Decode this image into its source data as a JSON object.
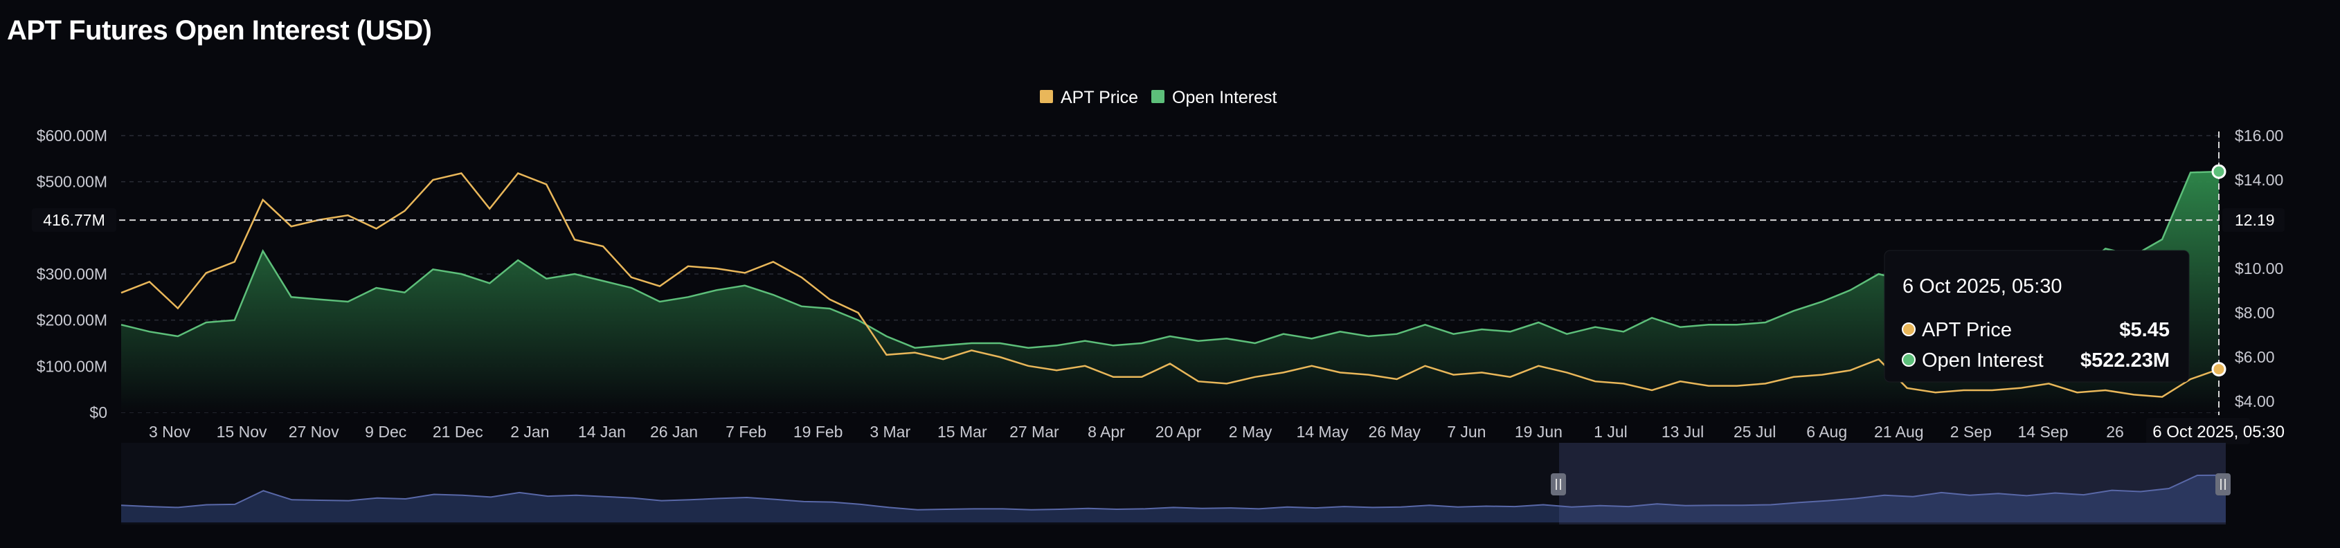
{
  "title": "APT Futures Open Interest (USD)",
  "legend": [
    {
      "label": "APT Price",
      "color": "#e9b75a"
    },
    {
      "label": "Open Interest",
      "color": "#5dbf7a"
    }
  ],
  "colors": {
    "price_line": "#e9b75a",
    "oi_line": "#5dbf7a",
    "oi_fill_top": "#2f8a4c",
    "background": "#07080d",
    "navigator_fill": "#1e2a4a",
    "navigator_line": "#5968a8"
  },
  "crosshair": {
    "left_label": "416.77M",
    "right_label": "12.19"
  },
  "tooltip": {
    "date": "6 Oct 2025, 05:30",
    "rows": [
      {
        "label": "APT Price",
        "value": "$5.45",
        "color": "#e9b75a"
      },
      {
        "label": "Open Interest",
        "value": "$522.23M",
        "color": "#5dbf7a"
      }
    ]
  },
  "x_highlight_label": "6 Oct 2025, 05:30",
  "chart_data": {
    "type": "line",
    "title": "APT Futures Open Interest (USD)",
    "x_ticks": [
      "3 Nov",
      "15 Nov",
      "27 Nov",
      "9 Dec",
      "21 Dec",
      "2 Jan",
      "14 Jan",
      "26 Jan",
      "7 Feb",
      "19 Feb",
      "3 Mar",
      "15 Mar",
      "27 Mar",
      "8 Apr",
      "20 Apr",
      "2 May",
      "14 May",
      "26 May",
      "7 Jun",
      "19 Jun",
      "1 Jul",
      "13 Jul",
      "25 Jul",
      "6 Aug",
      "21 Aug",
      "2 Sep",
      "14 Sep",
      "26"
    ],
    "y_left_ticks": [
      "$600.00M",
      "$500.00M",
      "$300.00M",
      "$200.00M",
      "$100.00M",
      "$0"
    ],
    "y_left_range": [
      0,
      600
    ],
    "y_right_ticks": [
      "$16.00",
      "$14.00",
      "$10.00",
      "$8.00",
      "$6.00",
      "$4.00"
    ],
    "y_right_range": [
      3.5,
      16
    ],
    "series": [
      {
        "name": "Open Interest",
        "axis": "left",
        "unit": "M USD",
        "values": [
          190,
          175,
          165,
          195,
          200,
          350,
          250,
          245,
          240,
          270,
          260,
          310,
          300,
          280,
          330,
          290,
          300,
          285,
          270,
          240,
          250,
          265,
          275,
          255,
          230,
          225,
          200,
          165,
          140,
          145,
          150,
          150,
          140,
          145,
          155,
          145,
          150,
          165,
          155,
          160,
          150,
          170,
          160,
          175,
          165,
          170,
          190,
          170,
          180,
          175,
          195,
          170,
          185,
          175,
          205,
          185,
          190,
          190,
          195,
          220,
          240,
          265,
          300,
          285,
          330,
          300,
          320,
          295,
          325,
          305,
          355,
          340,
          375,
          520,
          522
        ]
      },
      {
        "name": "APT Price",
        "axis": "right",
        "unit": "USD",
        "values": [
          8.9,
          9.4,
          8.2,
          9.8,
          10.3,
          13.1,
          11.9,
          12.2,
          12.4,
          11.8,
          12.6,
          14.0,
          14.3,
          12.7,
          14.3,
          13.8,
          11.3,
          11.0,
          9.6,
          9.2,
          10.1,
          10.0,
          9.8,
          10.3,
          9.6,
          8.6,
          8.0,
          6.1,
          6.2,
          5.9,
          6.3,
          6.0,
          5.6,
          5.4,
          5.6,
          5.1,
          5.1,
          5.7,
          4.9,
          4.8,
          5.1,
          5.3,
          5.6,
          5.3,
          5.2,
          5.0,
          5.6,
          5.2,
          5.3,
          5.1,
          5.6,
          5.3,
          4.9,
          4.8,
          4.5,
          4.9,
          4.7,
          4.7,
          4.8,
          5.1,
          5.2,
          5.4,
          5.9,
          4.6,
          4.4,
          4.5,
          4.5,
          4.6,
          4.8,
          4.4,
          4.5,
          4.3,
          4.2,
          5.0,
          5.45
        ]
      }
    ],
    "grid": true,
    "legend_position": "top-center"
  }
}
